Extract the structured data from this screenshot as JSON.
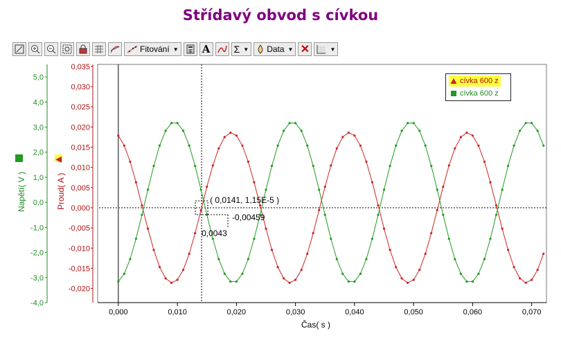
{
  "title": "Střídavý obvod s cívkou",
  "colors": {
    "title": "#800080",
    "series_red": "#cc2222",
    "series_green": "#229922",
    "axis_red": "#aa1111",
    "axis_green": "#228822"
  },
  "toolbar": {
    "fit_label": "Fitování",
    "data_label": "Data",
    "sigma": "Σ",
    "font_a": "A",
    "buttons": [
      "autoscale-icon",
      "zoom-in-icon",
      "zoom-out-icon",
      "zoom-box-icon",
      "lock-icon",
      "table-icon",
      "tangent-icon",
      "fit-icon",
      "calculator-icon",
      "text-icon",
      "curve-icon",
      "sigma-icon",
      "data-icon",
      "delete-icon",
      "graph-options-icon"
    ]
  },
  "legend": {
    "items": [
      "cívka 600 z",
      "cívka 600 z"
    ]
  },
  "annotation": {
    "point_label": "( 0,0141, 1,15E-5 )",
    "dy_label": "-0,00459",
    "dx_label": "0,0043"
  },
  "chart_data": {
    "type": "line",
    "xlabel": "Čas( s )",
    "ylabel_left": "Napětí( V )",
    "ylabel_right": "Proud( A )",
    "xlim": [
      -0.0035,
      0.0725
    ],
    "ylim_current": [
      -0.0235,
      0.0355
    ],
    "ylim_voltage": [
      -4.0,
      5.5
    ],
    "x_ticks": [
      "0,000",
      "0,010",
      "0,020",
      "0,030",
      "0,040",
      "0,050",
      "0,060",
      "0,070"
    ],
    "current_ticks": [
      "0,035",
      "0,030",
      "0,025",
      "0,020",
      "0,015",
      "0,010",
      "0,005",
      "0,000",
      "-0,005",
      "-0,010",
      "-0,015",
      "-0,020"
    ],
    "voltage_ticks": [
      "5,0",
      "4,0",
      "3,0",
      "2,0",
      "1,0",
      "0,0",
      "-1,0",
      "-2,0",
      "-3,0",
      "-4,0"
    ],
    "cursor_x": 0.0141,
    "series": [
      {
        "name": "cívka 600 z",
        "quantity": "current",
        "marker": "triangle",
        "amplitude": 0.0186,
        "frequency_hz": 50,
        "phase_zero_cross_x": 0.0141,
        "x_start": 0.0,
        "x_end": 0.0725,
        "dx": 0.001
      },
      {
        "name": "cívka 600 z",
        "quantity": "voltage",
        "marker": "square",
        "amplitude": 3.2,
        "frequency_hz": 50,
        "phase_zero_cross_x": 0.0045,
        "x_start": 0.0,
        "x_end": 0.0725,
        "dx": 0.001
      }
    ]
  }
}
